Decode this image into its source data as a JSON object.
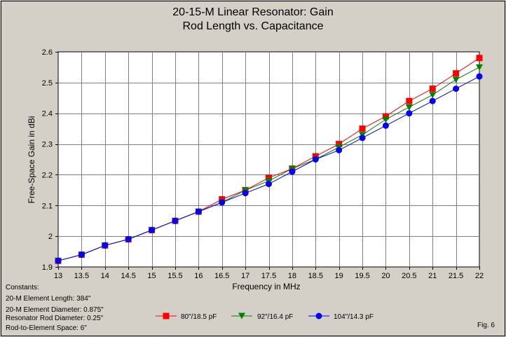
{
  "chart_data": {
    "type": "line",
    "title": "20-15-M Linear Resonator: Gain",
    "subtitle": "Rod Length vs. Capacitance",
    "xlabel": "Frequency in MHz",
    "ylabel": "Free-Space Gain in dBi",
    "xlim": [
      13,
      22
    ],
    "ylim": [
      1.9,
      2.6
    ],
    "x_ticks": [
      13,
      13.5,
      14,
      14.5,
      15,
      15.5,
      16,
      16.5,
      17,
      17.5,
      18,
      18.5,
      19,
      19.5,
      20,
      20.5,
      21,
      21.5,
      22
    ],
    "x_tick_labels": [
      "13",
      "13.5",
      "14",
      "14.5",
      "15",
      "15.5",
      "16",
      "16.5",
      "17",
      "17.5",
      "18",
      "18.5",
      "19",
      "19.5",
      "20",
      "20.5",
      "21",
      "21.5",
      "22"
    ],
    "y_ticks": [
      1.9,
      2.0,
      2.1,
      2.2,
      2.3,
      2.4,
      2.5,
      2.6
    ],
    "y_tick_labels": [
      "1.9",
      "2",
      "2.1",
      "2.2",
      "2.3",
      "2.4",
      "2.5",
      "2.6"
    ],
    "grid": true,
    "legend_position": "bottom",
    "series": [
      {
        "name": "80\"/18.5 pF",
        "color": "#ff0000",
        "marker": "square",
        "x": [
          13,
          13.5,
          14,
          14.5,
          15,
          15.5,
          16,
          16.5,
          17,
          17.5,
          18,
          18.5,
          19,
          19.5,
          20,
          20.5,
          21,
          21.5,
          22
        ],
        "values": [
          1.92,
          1.94,
          1.97,
          1.99,
          2.02,
          2.05,
          2.08,
          2.12,
          2.15,
          2.19,
          2.22,
          2.26,
          2.3,
          2.35,
          2.39,
          2.44,
          2.48,
          2.53,
          2.58
        ]
      },
      {
        "name": "92\"/16.4 pF",
        "color": "#008000",
        "marker": "triangle-down",
        "x": [
          13,
          13.5,
          14,
          14.5,
          15,
          15.5,
          16,
          16.5,
          17,
          17.5,
          18,
          18.5,
          19,
          19.5,
          20,
          20.5,
          21,
          21.5,
          22
        ],
        "values": [
          1.92,
          1.94,
          1.97,
          1.99,
          2.02,
          2.05,
          2.08,
          2.11,
          2.15,
          2.18,
          2.22,
          2.25,
          2.29,
          2.33,
          2.38,
          2.42,
          2.46,
          2.51,
          2.55
        ]
      },
      {
        "name": "104\"/14.3 pF",
        "color": "#0000ff",
        "marker": "circle",
        "x": [
          13,
          13.5,
          14,
          14.5,
          15,
          15.5,
          16,
          16.5,
          17,
          17.5,
          18,
          18.5,
          19,
          19.5,
          20,
          20.5,
          21,
          21.5,
          22
        ],
        "values": [
          1.92,
          1.94,
          1.97,
          1.99,
          2.02,
          2.05,
          2.08,
          2.11,
          2.14,
          2.17,
          2.21,
          2.25,
          2.28,
          2.32,
          2.36,
          2.4,
          2.44,
          2.48,
          2.52
        ]
      }
    ]
  },
  "constants": {
    "heading": "Constants:",
    "lines": [
      "20-M Element Length: 384\"",
      "20-M Element Diameter: 0.875\"",
      "Resonator Rod Diameter: 0.25\"",
      "Rod-to-Element Space: 6\""
    ]
  },
  "figure_label": "Fig. 6"
}
